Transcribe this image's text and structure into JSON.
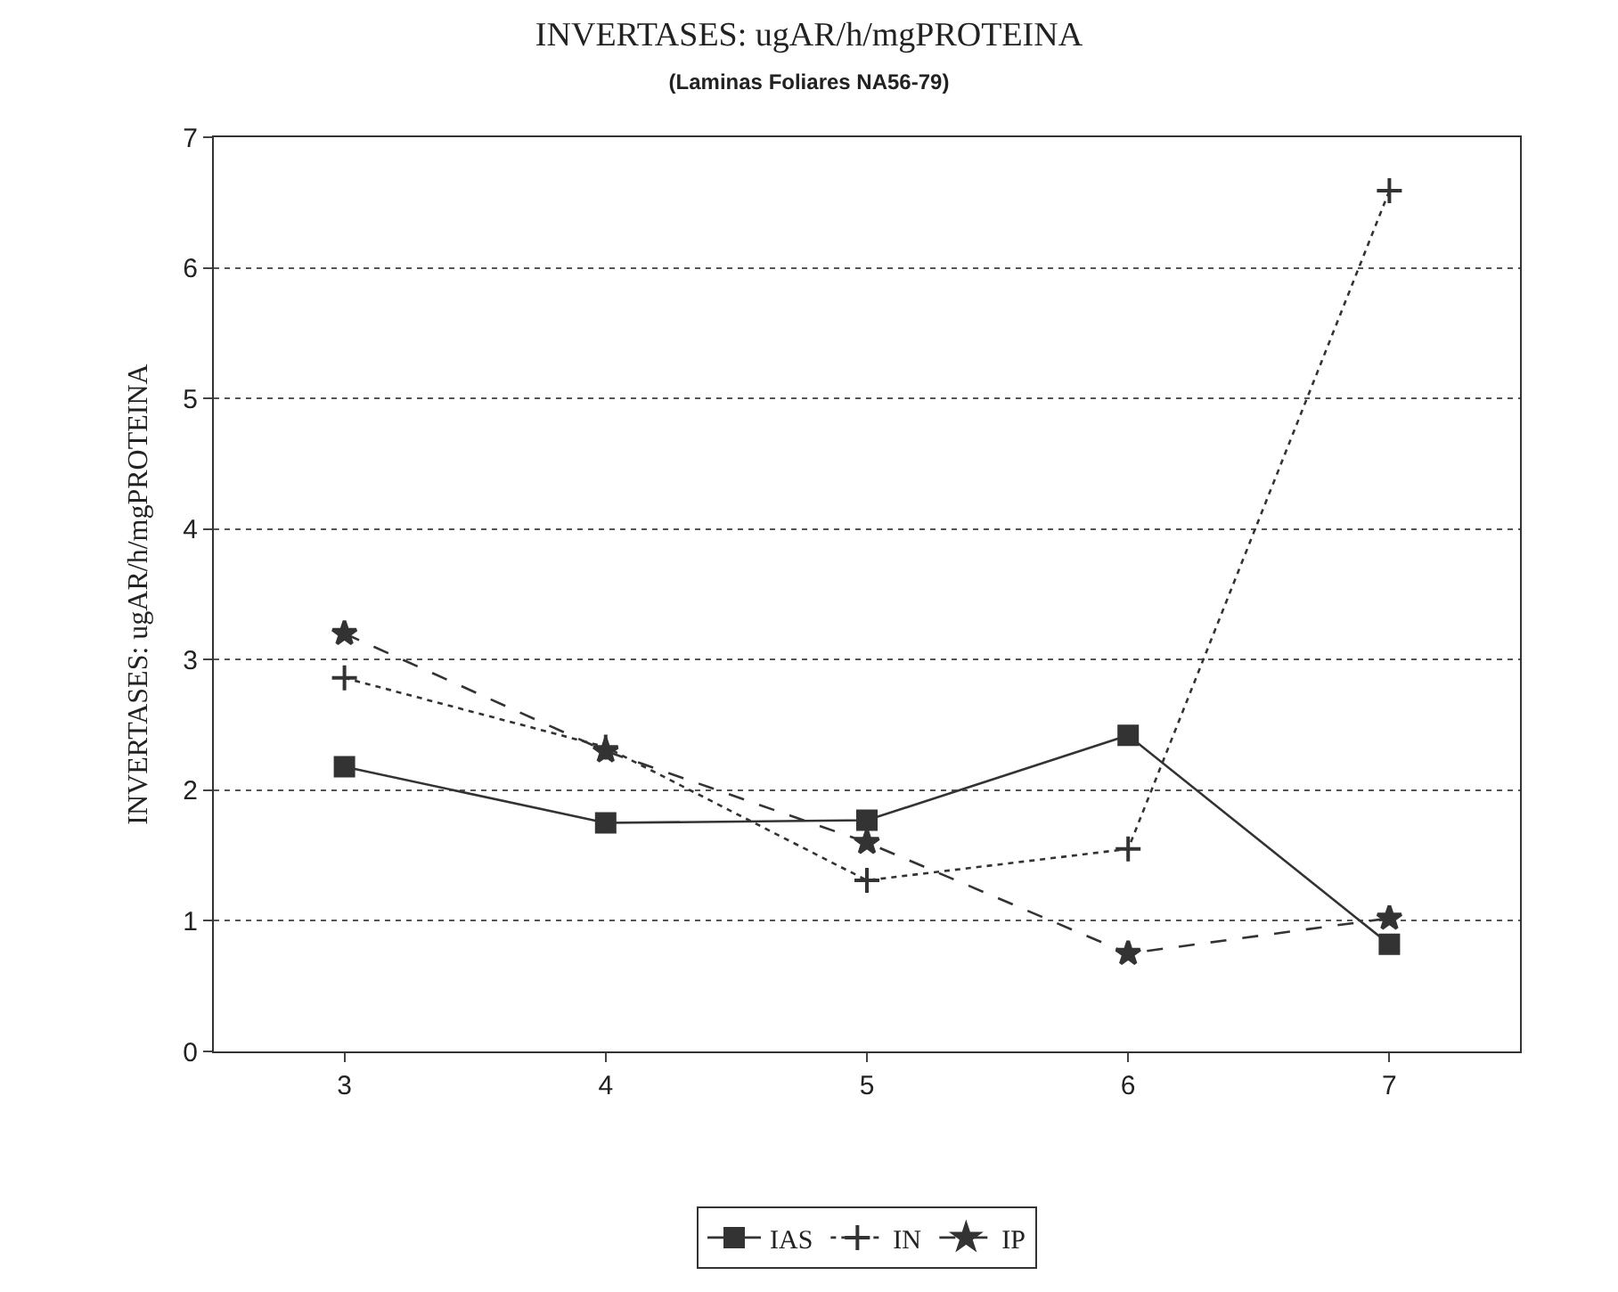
{
  "chart_data": {
    "type": "line",
    "title": "INVERTASES: ugAR/h/mgPROTEINA",
    "subtitle": "(Laminas Foliares NA56-79)",
    "ylabel": "INVERTASES: ugAR/h/mgPROTEINA",
    "x": [
      3,
      4,
      5,
      6,
      7
    ],
    "series": [
      {
        "name": "IAS",
        "color": "#333333",
        "marker": "square",
        "line_style": "solid",
        "values": [
          2.18,
          1.75,
          1.77,
          2.42,
          0.82
        ]
      },
      {
        "name": "IN",
        "color": "#333333",
        "marker": "cross",
        "line_style": "dotted",
        "values": [
          2.86,
          2.33,
          1.31,
          1.55,
          6.59
        ]
      },
      {
        "name": "IP",
        "color": "#333333",
        "marker": "star",
        "line_style": "dashed",
        "values": [
          3.2,
          2.3,
          1.6,
          0.75,
          1.02
        ]
      }
    ],
    "xlim": [
      2.5,
      7.5
    ],
    "xticks": [
      3,
      4,
      5,
      6,
      7
    ],
    "ylim": [
      0,
      7
    ],
    "yticks": [
      0,
      1,
      2,
      3,
      4,
      5,
      6,
      7
    ],
    "grid": "y",
    "legend": "bottom"
  }
}
